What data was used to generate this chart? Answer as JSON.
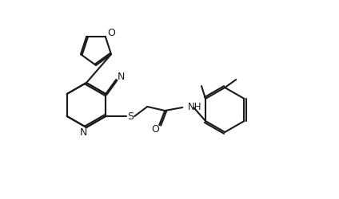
{
  "bg_color": "#ffffff",
  "line_color": "#1a1a1a",
  "line_width": 1.5,
  "figsize": [
    4.24,
    2.5
  ],
  "dpi": 100,
  "xlim": [
    0.0,
    4.24
  ],
  "ylim": [
    0.0,
    2.5
  ]
}
